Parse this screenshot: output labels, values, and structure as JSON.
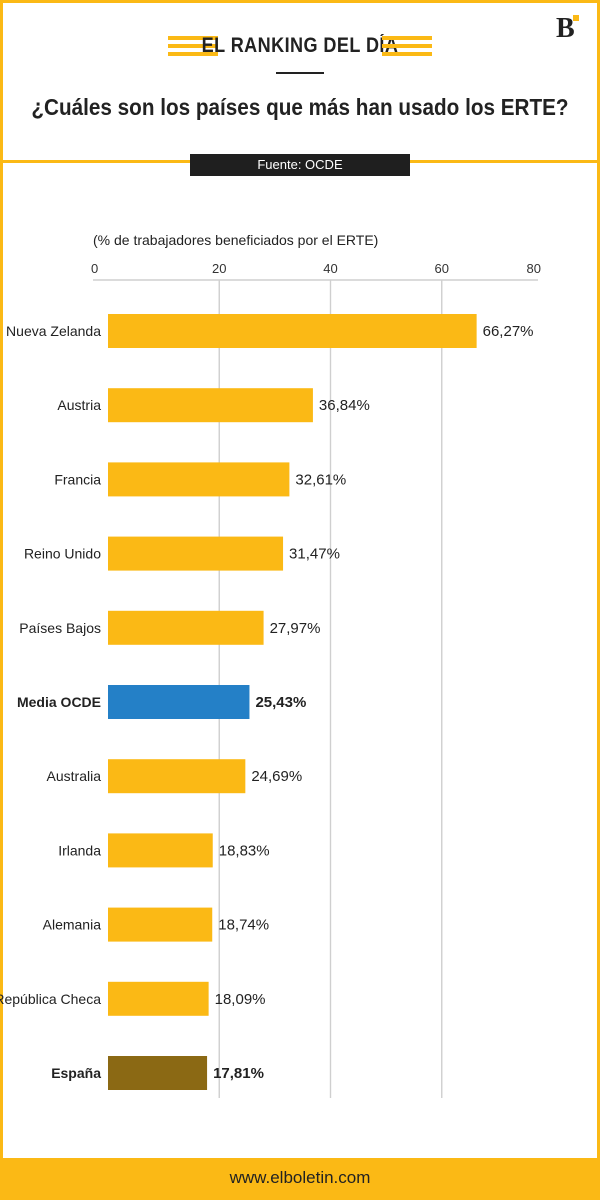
{
  "header": {
    "kicker": "EL RANKING DEL DÍA",
    "title": "¿Cuáles son los países que más han usado los ERTE?",
    "source": "Fuente: OCDE",
    "logo_letter": "B"
  },
  "footer": {
    "url": "www.elboletin.com"
  },
  "colors": {
    "accent": "#fbb915",
    "highlight": "#2480c7",
    "spain": "#8b6914",
    "dark": "#1f1f1f"
  },
  "chart_data": {
    "type": "bar",
    "orientation": "horizontal",
    "title": "",
    "axis_label": "(% de trabajadores beneficiados por el ERTE)",
    "xlim": [
      0,
      80
    ],
    "ticks": [
      0,
      20,
      40,
      60,
      80
    ],
    "grid": true,
    "categories": [
      "Nueva Zelanda",
      "Austria",
      "Francia",
      "Reino Unido",
      "Países Bajos",
      "Media OCDE",
      "Australia",
      "Irlanda",
      "Alemania",
      "República Checa",
      "España"
    ],
    "values": [
      66.27,
      36.84,
      32.61,
      31.47,
      27.97,
      25.43,
      24.69,
      18.83,
      18.74,
      18.09,
      17.81
    ],
    "value_labels": [
      "66,27%",
      "36,84%",
      "32,61%",
      "31,47%",
      "27,97%",
      "25,43%",
      "24,69%",
      "18,83%",
      "18,74%",
      "18,09%",
      "17,81%"
    ],
    "bold_categories": [
      "Media OCDE",
      "España"
    ],
    "bar_colors": [
      "#fbb915",
      "#fbb915",
      "#fbb915",
      "#fbb915",
      "#fbb915",
      "#2480c7",
      "#fbb915",
      "#fbb915",
      "#fbb915",
      "#fbb915",
      "#8b6914"
    ]
  }
}
